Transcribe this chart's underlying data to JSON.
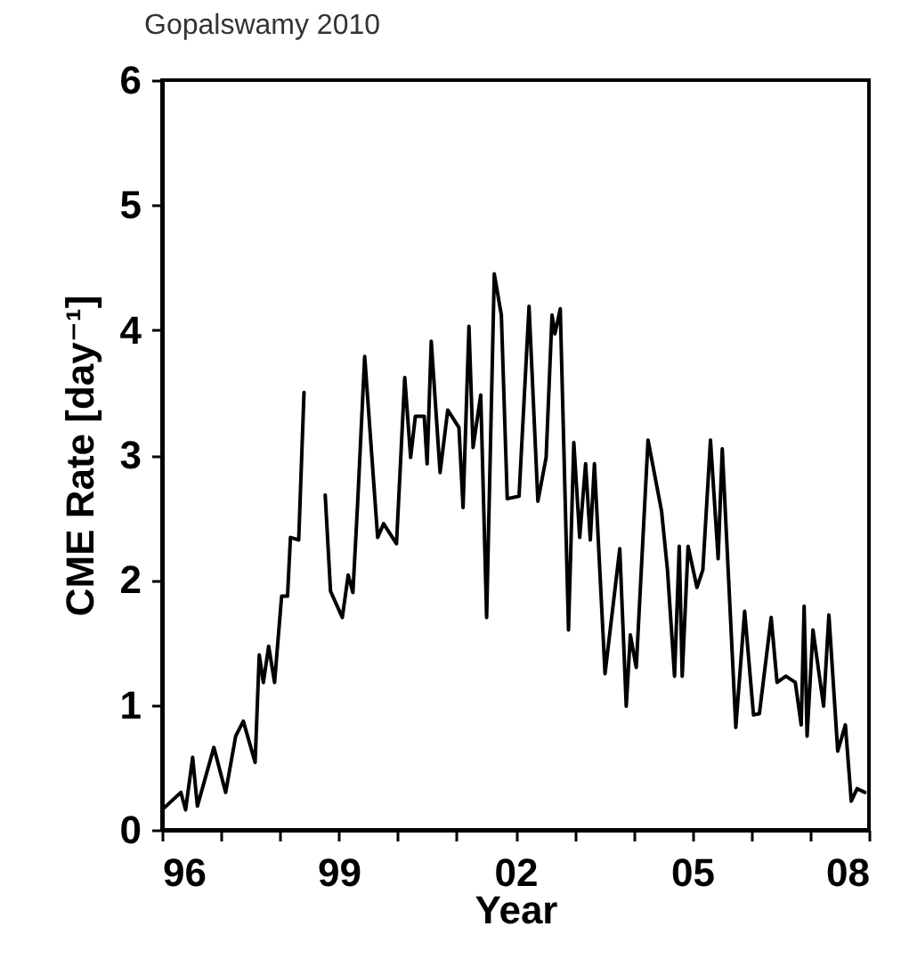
{
  "chart_data": {
    "type": "line",
    "title": "Gopalswamy 2010",
    "xlabel": "Year",
    "ylabel": "CME Rate [day⁻¹]",
    "x": [
      1996.0,
      1996.32,
      1996.4,
      1996.52,
      1996.6,
      1996.88,
      1997.08,
      1997.25,
      1997.38,
      1997.58,
      1997.65,
      1997.72,
      1997.81,
      1997.91,
      1998.03,
      1998.13,
      1998.18,
      1998.32,
      1998.41,
      1998.6,
      1998.77,
      1998.86,
      1999.06,
      1999.16,
      1999.24,
      1999.32,
      1999.44,
      1999.66,
      1999.76,
      1999.98,
      2000.12,
      2000.22,
      2000.3,
      2000.45,
      2000.5,
      2000.57,
      2000.72,
      2000.85,
      2001.04,
      2001.11,
      2001.21,
      2001.28,
      2001.41,
      2001.51,
      2001.64,
      2001.76,
      2001.86,
      2002.06,
      2002.23,
      2002.38,
      2002.52,
      2002.62,
      2002.67,
      2002.76,
      2002.9,
      2002.99,
      2003.09,
      2003.19,
      2003.27,
      2003.34,
      2003.52,
      2003.77,
      2003.88,
      2003.95,
      2004.05,
      2004.25,
      2004.48,
      2004.58,
      2004.7,
      2004.78,
      2004.83,
      2004.93,
      2005.08,
      2005.18,
      2005.31,
      2005.44,
      2005.51,
      2005.74,
      2005.89,
      2006.04,
      2006.14,
      2006.34,
      2006.44,
      2006.59,
      2006.75,
      2006.85,
      2006.9,
      2006.95,
      2007.05,
      2007.23,
      2007.32,
      2007.47,
      2007.6,
      2007.7,
      2007.8,
      2007.93
    ],
    "series": [
      {
        "color": "#000000",
        "values": [
          0.16,
          0.3,
          0.16,
          0.58,
          0.19,
          0.66,
          0.3,
          0.75,
          0.87,
          0.54,
          1.4,
          1.18,
          1.47,
          1.18,
          1.87,
          1.87,
          2.34,
          2.32,
          3.5,
          null,
          2.68,
          1.91,
          1.7,
          2.04,
          1.9,
          2.61,
          3.79,
          2.34,
          2.45,
          2.29,
          3.62,
          2.98,
          3.31,
          3.31,
          2.93,
          3.91,
          2.86,
          3.36,
          3.22,
          2.58,
          4.03,
          3.06,
          3.48,
          1.7,
          4.45,
          4.12,
          2.65,
          2.67,
          4.19,
          2.63,
          2.98,
          4.12,
          3.97,
          4.17,
          1.6,
          3.1,
          2.34,
          2.93,
          2.32,
          2.93,
          1.25,
          2.25,
          0.99,
          1.56,
          1.3,
          3.12,
          2.55,
          2.08,
          1.23,
          2.27,
          1.23,
          2.27,
          1.94,
          2.08,
          3.12,
          2.17,
          3.05,
          0.82,
          1.75,
          0.92,
          0.93,
          1.7,
          1.18,
          1.23,
          1.18,
          0.84,
          1.79,
          0.75,
          1.6,
          0.99,
          1.72,
          0.63,
          0.84,
          0.23,
          0.33,
          0.3
        ]
      }
    ],
    "xlim": [
      1996,
      2008
    ],
    "xticks": [
      {
        "value": 1996,
        "label": "96"
      },
      {
        "value": 1997,
        "label": null
      },
      {
        "value": 1998,
        "label": null
      },
      {
        "value": 1999,
        "label": "99"
      },
      {
        "value": 2000,
        "label": null
      },
      {
        "value": 2001,
        "label": null
      },
      {
        "value": 2002,
        "label": "02"
      },
      {
        "value": 2003,
        "label": null
      },
      {
        "value": 2004,
        "label": null
      },
      {
        "value": 2005,
        "label": "05"
      },
      {
        "value": 2006,
        "label": null
      },
      {
        "value": 2007,
        "label": null
      },
      {
        "value": 2008,
        "label": "08"
      }
    ],
    "ylim": [
      0,
      6
    ],
    "yticks": [
      0,
      1,
      2,
      3,
      4,
      5,
      6
    ],
    "grid": false,
    "marker": "none",
    "line_style": "solid"
  }
}
